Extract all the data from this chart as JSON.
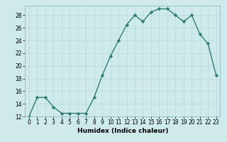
{
  "x": [
    0,
    1,
    2,
    3,
    4,
    5,
    6,
    7,
    8,
    9,
    10,
    11,
    12,
    13,
    14,
    15,
    16,
    17,
    18,
    19,
    20,
    21,
    22,
    23
  ],
  "y": [
    12,
    15,
    15,
    13.5,
    12.5,
    12.5,
    12.5,
    12.5,
    15,
    18.5,
    21.5,
    24,
    26.5,
    28,
    27,
    28.5,
    29,
    29,
    28,
    27,
    28,
    25,
    23.5,
    18.5
  ],
  "line_color": "#2e7d6e",
  "marker": "D",
  "marker_size": 2.2,
  "bg_color": "#ceeaea",
  "grid_color": "#b8d8d8",
  "xlabel": "Humidex (Indice chaleur)",
  "ylim": [
    12,
    29.5
  ],
  "xlim": [
    -0.5,
    23.5
  ],
  "yticks": [
    12,
    14,
    16,
    18,
    20,
    22,
    24,
    26,
    28
  ],
  "xticks": [
    0,
    1,
    2,
    3,
    4,
    5,
    6,
    7,
    8,
    9,
    10,
    11,
    12,
    13,
    14,
    15,
    16,
    17,
    18,
    19,
    20,
    21,
    22,
    23
  ],
  "xlabel_fontsize": 6.5,
  "tick_fontsize": 5.5,
  "line_width": 1.0
}
